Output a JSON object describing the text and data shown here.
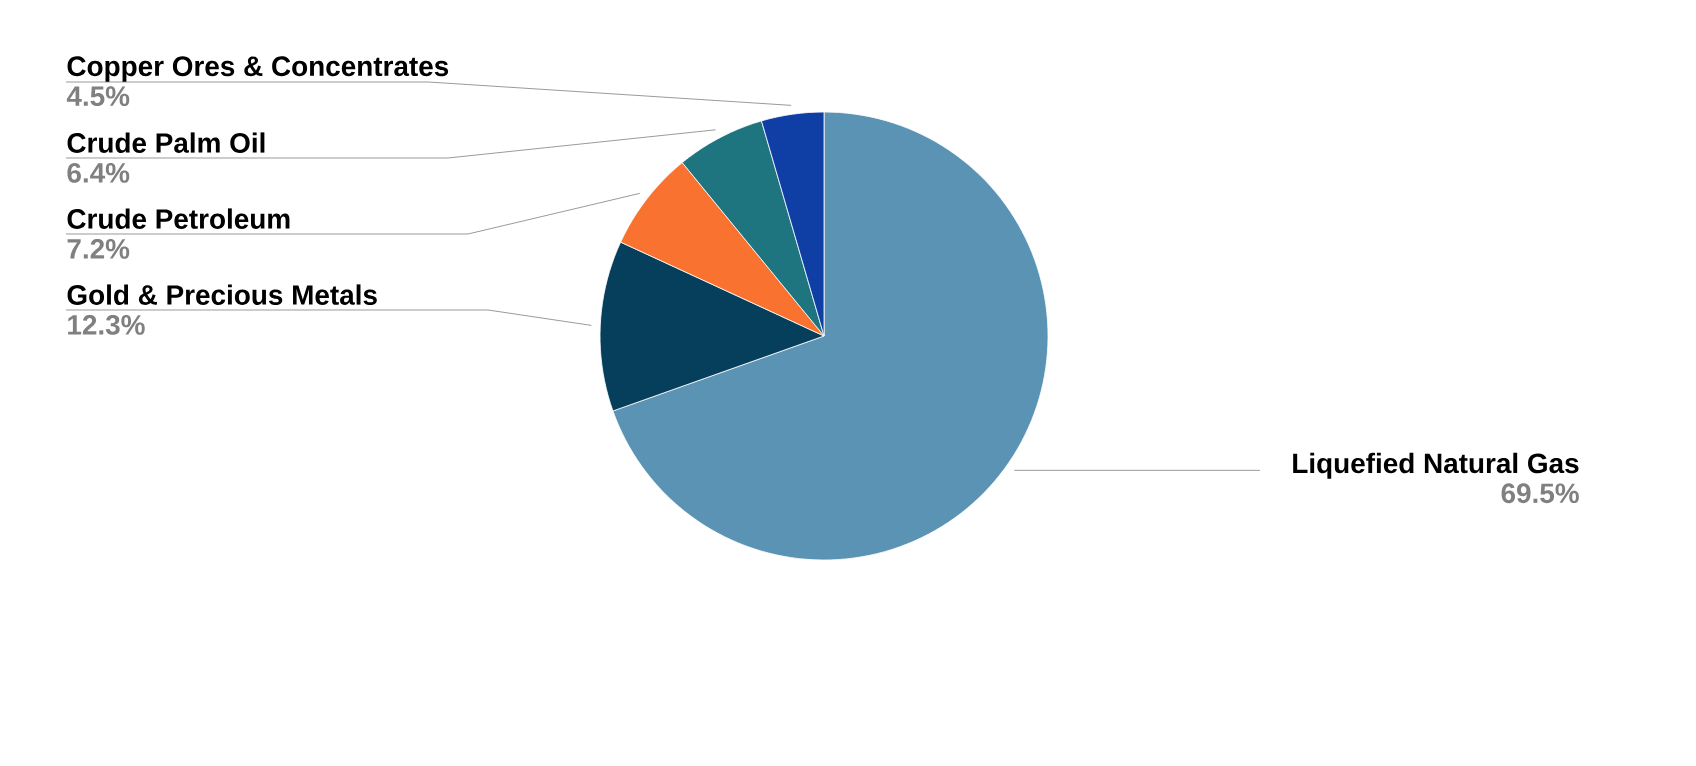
{
  "chart_data": {
    "type": "pie",
    "categories": [
      "Liquefied Natural Gas",
      "Gold & Precious Metals",
      "Crude Petroleum",
      "Crude Palm Oil",
      "Copper Ores & Concentrates"
    ],
    "values": [
      69.5,
      12.3,
      7.2,
      6.4,
      4.5
    ],
    "colors": [
      "#5a93b3",
      "#053f5c",
      "#f9722f",
      "#1e7580",
      "#0f3ea5"
    ],
    "value_labels": [
      "69.5%",
      "12.3%",
      "7.2%",
      "6.4%",
      "4.5%"
    ]
  }
}
